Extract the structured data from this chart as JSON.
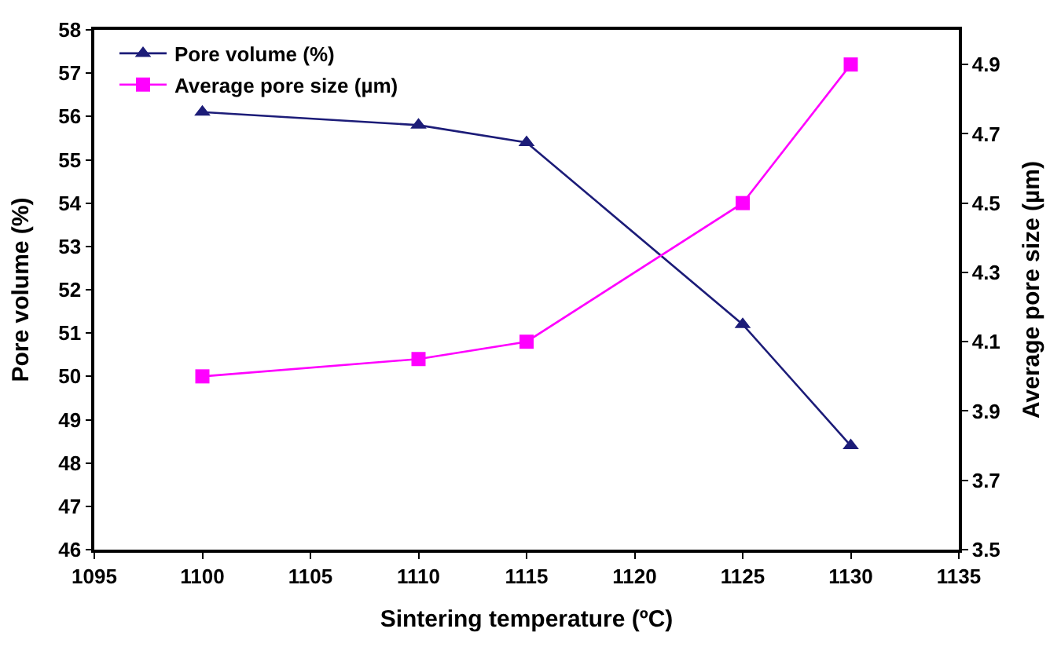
{
  "chart_data": {
    "type": "line",
    "xlabel": "Sintering temperature (ºC)",
    "ylabel": "Pore volume (%)",
    "y2label": "Average pore size (µm)",
    "x": [
      1100,
      1110,
      1115,
      1125,
      1130
    ],
    "series": [
      {
        "name": "Pore volume (%)",
        "color": "#1c1c78",
        "marker": "triangle",
        "values": [
          56.1,
          55.8,
          55.4,
          51.2,
          48.4
        ]
      },
      {
        "name": "Average pore size (µm)",
        "color": "#ff00ff",
        "marker": "square",
        "axis": "y2",
        "values": [
          4.0,
          4.05,
          4.1,
          4.5,
          4.9
        ]
      }
    ],
    "xlim": [
      1095,
      1135
    ],
    "xticks": [
      1095,
      1100,
      1105,
      1110,
      1115,
      1120,
      1125,
      1130,
      1135
    ],
    "ylim": [
      46,
      58
    ],
    "yticks": [
      46,
      47,
      48,
      49,
      50,
      51,
      52,
      53,
      54,
      55,
      56,
      57,
      58
    ],
    "y2lim": [
      3.5,
      5.0
    ],
    "y2ticks": [
      3.5,
      3.7,
      3.9,
      4.1,
      4.3,
      4.5,
      4.7,
      4.9
    ],
    "legend": "top left"
  }
}
